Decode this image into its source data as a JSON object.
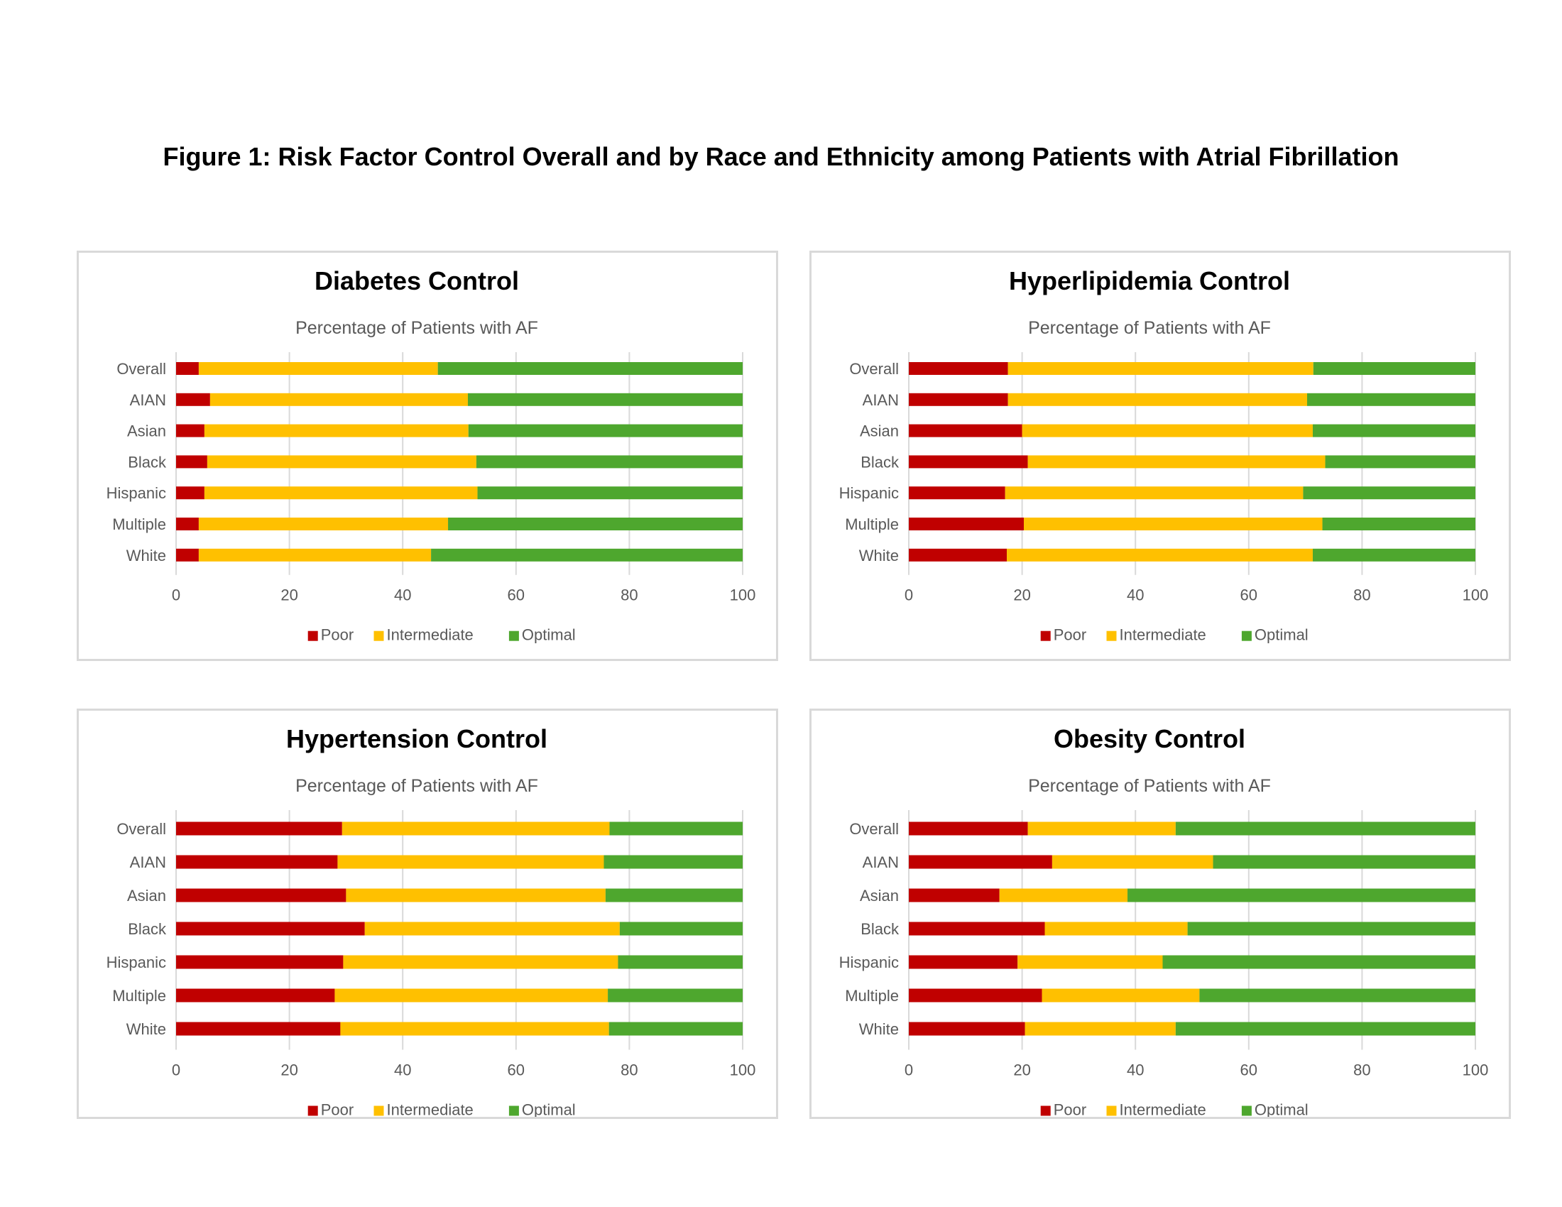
{
  "figure_title": "Figure 1: Risk Factor Control Overall and by Race and Ethnicity among Patients with Atrial Fibrillation",
  "colors": {
    "Poor": "#c00000",
    "Intermediate": "#ffc000",
    "Optimal": "#4ea72e"
  },
  "chart_data": [
    {
      "type": "bar",
      "orientation": "horizontal",
      "stacked": true,
      "title": "Diabetes Control",
      "subtitle": "Percentage of Patients with AF",
      "categories": [
        "Overall",
        "AIAN",
        "Asian",
        "Black",
        "Hispanic",
        "Multiple",
        "White"
      ],
      "series": [
        {
          "name": "Poor",
          "values": [
            4,
            6,
            5,
            5.5,
            5,
            4,
            4
          ]
        },
        {
          "name": "Intermediate",
          "values": [
            42.2,
            45.5,
            46.6,
            47.5,
            48.2,
            44,
            41
          ]
        },
        {
          "name": "Optimal",
          "values": [
            53.8,
            48.5,
            48.4,
            47,
            46.8,
            52,
            55
          ]
        }
      ],
      "xlim": [
        0,
        100
      ],
      "xticks": [
        0,
        20,
        40,
        60,
        80,
        100
      ],
      "legend": "bottom",
      "grid": true
    },
    {
      "type": "bar",
      "orientation": "horizontal",
      "stacked": true,
      "title": "Hyperlipidemia Control",
      "subtitle": "Percentage of Patients with AF",
      "categories": [
        "Overall",
        "AIAN",
        "Asian",
        "Black",
        "Hispanic",
        "Multiple",
        "White"
      ],
      "series": [
        {
          "name": "Poor",
          "values": [
            17.5,
            17.5,
            20,
            21,
            17,
            20.3,
            17.3
          ]
        },
        {
          "name": "Intermediate",
          "values": [
            53.9,
            52.8,
            51.3,
            52.5,
            52.6,
            52.7,
            54
          ]
        },
        {
          "name": "Optimal",
          "values": [
            28.6,
            29.7,
            28.7,
            26.5,
            30.4,
            27,
            28.7
          ]
        }
      ],
      "xlim": [
        0,
        100
      ],
      "xticks": [
        0,
        20,
        40,
        60,
        80,
        100
      ],
      "legend": "bottom",
      "grid": true
    },
    {
      "type": "bar",
      "orientation": "horizontal",
      "stacked": true,
      "title": "Hypertension Control",
      "subtitle": "Percentage of Patients with AF",
      "categories": [
        "Overall",
        "AIAN",
        "Asian",
        "Black",
        "Hispanic",
        "Multiple",
        "White"
      ],
      "series": [
        {
          "name": "Poor",
          "values": [
            29.3,
            28.5,
            30,
            33.3,
            29.5,
            28,
            29
          ]
        },
        {
          "name": "Intermediate",
          "values": [
            47.2,
            47,
            45.8,
            45,
            48.5,
            48.2,
            47.4
          ]
        },
        {
          "name": "Optimal",
          "values": [
            23.5,
            24.5,
            24.2,
            21.7,
            22,
            23.8,
            23.6
          ]
        }
      ],
      "xlim": [
        0,
        100
      ],
      "xticks": [
        0,
        20,
        40,
        60,
        80,
        100
      ],
      "legend": "bottom",
      "grid": true
    },
    {
      "type": "bar",
      "orientation": "horizontal",
      "stacked": true,
      "title": "Obesity Control",
      "subtitle": "Percentage of Patients with AF",
      "categories": [
        "Overall",
        "AIAN",
        "Asian",
        "Black",
        "Hispanic",
        "Multiple",
        "White"
      ],
      "series": [
        {
          "name": "Poor",
          "values": [
            21,
            25.3,
            16,
            24,
            19.2,
            23.5,
            20.5
          ]
        },
        {
          "name": "Intermediate",
          "values": [
            26.1,
            28.4,
            22.6,
            25.2,
            25.6,
            27.8,
            26.6
          ]
        },
        {
          "name": "Optimal",
          "values": [
            52.9,
            46.3,
            61.4,
            50.8,
            55.2,
            48.7,
            52.9
          ]
        }
      ],
      "xlim": [
        0,
        100
      ],
      "xticks": [
        0,
        20,
        40,
        60,
        80,
        100
      ],
      "legend": "bottom",
      "grid": true
    }
  ]
}
